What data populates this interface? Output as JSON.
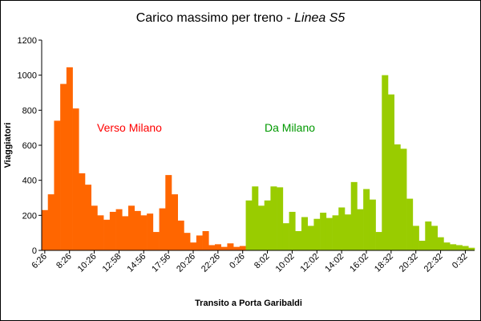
{
  "chart_data": {
    "type": "bar",
    "title": "Carico massimo per treno - ",
    "title_italic": "Linea S5",
    "xlabel": "Transito a Porta Garibaldi",
    "ylabel": "Viaggiatori",
    "ylim": [
      0,
      1200
    ],
    "yticks": [
      0,
      200,
      400,
      600,
      800,
      1000,
      1200
    ],
    "grid": false,
    "x_tick_labels": [
      "6:26",
      "8:26",
      "10:26",
      "12:58",
      "14:56",
      "17:56",
      "20:26",
      "22:26",
      "0:26",
      "8:02",
      "10:02",
      "12:02",
      "14:02",
      "16:02",
      "18:32",
      "20:32",
      "22:32",
      "0:32"
    ],
    "series": [
      {
        "name": "Verso Milano",
        "color": "#ff6600",
        "values": [
          230,
          320,
          740,
          950,
          1045,
          810,
          440,
          375,
          255,
          200,
          175,
          220,
          235,
          195,
          255,
          225,
          200,
          210,
          105,
          240,
          430,
          320,
          170,
          100,
          45,
          85,
          110,
          30,
          35,
          20,
          40,
          20,
          25
        ]
      },
      {
        "name": "Da Milano",
        "color": "#99cc00",
        "values": [
          285,
          365,
          255,
          285,
          365,
          360,
          155,
          220,
          110,
          190,
          140,
          180,
          215,
          185,
          200,
          245,
          205,
          390,
          235,
          350,
          290,
          105,
          1000,
          890,
          605,
          580,
          295,
          140,
          55,
          165,
          140,
          75,
          45,
          35,
          30,
          25,
          15
        ]
      }
    ],
    "annotations": [
      {
        "text": "Verso Milano",
        "color": "#ff0000"
      },
      {
        "text": "Da Milano",
        "color": "#009900"
      }
    ]
  }
}
